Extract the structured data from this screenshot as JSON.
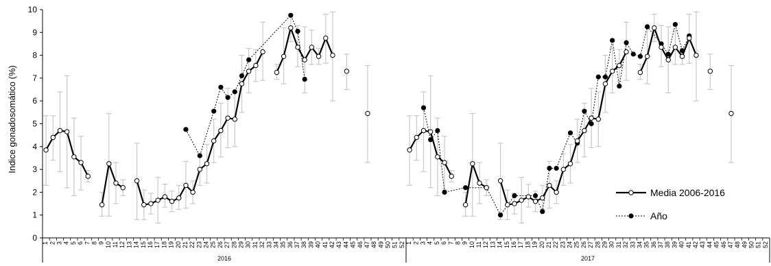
{
  "chart_data": {
    "type": "line",
    "ylabel": "Indice gonadosomático (%)",
    "ylim": [
      0,
      10
    ],
    "yticks": [
      "0",
      "1",
      "2",
      "3",
      "4",
      "5",
      "6",
      "7",
      "8",
      "9",
      "10"
    ],
    "week_labels": [
      "1",
      "2",
      "3",
      "4",
      "5",
      "6",
      "7",
      "8",
      "9",
      "10",
      "11",
      "12",
      "13",
      "14",
      "15",
      "16",
      "17",
      "18",
      "19",
      "20",
      "21",
      "22",
      "23",
      "24",
      "25",
      "26",
      "27",
      "28",
      "29",
      "30",
      "31",
      "32",
      "33",
      "34",
      "35",
      "36",
      "37",
      "38",
      "39",
      "40",
      "41",
      "42",
      "43",
      "44",
      "45",
      "46",
      "47",
      "48",
      "49",
      "50",
      "51",
      "52"
    ],
    "groups": [
      "2016",
      "2017"
    ],
    "legend": {
      "position": "bottom-right",
      "media_label": "Media 2006-2016",
      "year_label": "Año"
    },
    "colors": {
      "mean_line": "#000000",
      "error_bar": "#c8c8c8",
      "year_marker": "#000000"
    },
    "mean_series": {
      "name": "Media 2006-2016",
      "points": [
        {
          "week": 1,
          "mean": 3.85,
          "lo": 2.3,
          "hi": 5.35
        },
        {
          "week": 2,
          "mean": 4.4,
          "lo": 3.4,
          "hi": 5.35
        },
        {
          "week": 3,
          "mean": 4.7,
          "lo": 2.9,
          "hi": 6.4
        },
        {
          "week": 4,
          "mean": 4.65,
          "lo": 2.2,
          "hi": 7.1
        },
        {
          "week": 5,
          "mean": 3.55,
          "lo": 1.85,
          "hi": 5.25
        },
        {
          "week": 6,
          "mean": 3.3,
          "lo": 2.1,
          "hi": 4.45
        },
        {
          "week": 7,
          "mean": 2.7,
          "lo": 2.45,
          "hi": 2.95
        },
        {
          "week": 9,
          "mean": 1.45,
          "lo": 0.95,
          "hi": 2.0
        },
        {
          "week": 10,
          "mean": 3.25,
          "lo": 0.95,
          "hi": 5.45
        },
        {
          "week": 11,
          "mean": 2.4,
          "lo": 1.5,
          "hi": 3.3
        },
        {
          "week": 12,
          "mean": 2.2,
          "lo": 1.85,
          "hi": 2.55
        },
        {
          "week": 14,
          "mean": 2.5,
          "lo": 0.8,
          "hi": 4.15
        },
        {
          "week": 15,
          "mean": 1.45,
          "lo": 0.8,
          "hi": 2.1
        },
        {
          "week": 16,
          "mean": 1.5,
          "lo": 1.05,
          "hi": 1.95
        },
        {
          "week": 17,
          "mean": 1.65,
          "lo": 0.65,
          "hi": 2.65
        },
        {
          "week": 18,
          "mean": 1.8,
          "lo": 1.35,
          "hi": 2.35
        },
        {
          "week": 19,
          "mean": 1.6,
          "lo": 1.15,
          "hi": 2.05
        },
        {
          "week": 20,
          "mean": 1.75,
          "lo": 1.25,
          "hi": 2.3
        },
        {
          "week": 21,
          "mean": 2.3,
          "lo": 1.3,
          "hi": 3.35
        },
        {
          "week": 22,
          "mean": 2.0,
          "lo": 1.5,
          "hi": 2.5
        },
        {
          "week": 23,
          "mean": 3.0,
          "lo": 2.3,
          "hi": 3.7
        },
        {
          "week": 24,
          "mean": 3.25,
          "lo": 2.4,
          "hi": 4.1
        },
        {
          "week": 25,
          "mean": 4.25,
          "lo": 3.3,
          "hi": 5.2
        },
        {
          "week": 26,
          "mean": 4.7,
          "lo": 3.55,
          "hi": 5.9
        },
        {
          "week": 27,
          "mean": 5.25,
          "lo": 3.95,
          "hi": 6.55
        },
        {
          "week": 28,
          "mean": 5.2,
          "lo": 4.0,
          "hi": 6.4
        },
        {
          "week": 29,
          "mean": 6.75,
          "lo": 5.5,
          "hi": 8.0
        },
        {
          "week": 30,
          "mean": 7.3,
          "lo": 6.35,
          "hi": 8.3
        },
        {
          "week": 31,
          "mean": 7.55,
          "lo": 6.85,
          "hi": 8.25
        },
        {
          "week": 32,
          "mean": 8.15,
          "lo": 6.9,
          "hi": 9.45
        },
        {
          "week": 34,
          "mean": 7.25,
          "lo": 6.95,
          "hi": 7.6
        },
        {
          "week": 35,
          "mean": 7.95,
          "lo": 6.75,
          "hi": 9.2
        },
        {
          "week": 36,
          "mean": 9.2,
          "lo": 8.6,
          "hi": 9.8
        },
        {
          "week": 37,
          "mean": 8.35,
          "lo": 7.5,
          "hi": 9.3
        },
        {
          "week": 38,
          "mean": 7.8,
          "lo": 6.35,
          "hi": 9.25
        },
        {
          "week": 39,
          "mean": 8.35,
          "lo": 7.6,
          "hi": 9.1
        },
        {
          "week": 40,
          "mean": 7.95,
          "lo": 7.6,
          "hi": 8.3
        },
        {
          "week": 41,
          "mean": 8.75,
          "lo": 7.65,
          "hi": 9.8
        },
        {
          "week": 42,
          "mean": 8.0,
          "lo": 6.0,
          "hi": 9.9
        },
        {
          "week": 44,
          "mean": 7.3,
          "lo": 6.5,
          "hi": 8.05
        },
        {
          "week": 47,
          "mean": 5.45,
          "lo": 3.3,
          "hi": 7.55
        }
      ]
    },
    "year_series": [
      {
        "name": "2016",
        "points": [
          {
            "week": 21,
            "value": 4.75
          },
          {
            "week": 23,
            "value": 3.6
          },
          {
            "week": 25,
            "value": 5.55
          },
          {
            "week": 26,
            "value": 6.6
          },
          {
            "week": 27,
            "value": 6.15
          },
          {
            "week": 28,
            "value": 6.4
          },
          {
            "week": 29,
            "value": 7.1
          },
          {
            "week": 30,
            "value": 7.8
          },
          {
            "week": 36,
            "value": 9.75
          },
          {
            "week": 37,
            "value": 9.05
          },
          {
            "week": 38,
            "value": 6.95
          }
        ]
      },
      {
        "name": "2017",
        "points": [
          {
            "week": 3,
            "value": 5.7
          },
          {
            "week": 4,
            "value": 4.3
          },
          {
            "week": 5,
            "value": 4.7
          },
          {
            "week": 6,
            "value": 2.0
          },
          {
            "week": 9,
            "value": 2.2
          },
          {
            "week": 12,
            "value": 2.2
          },
          {
            "week": 14,
            "value": 1.0
          },
          {
            "week": 16,
            "value": 1.85
          },
          {
            "week": 19,
            "value": 1.85
          },
          {
            "week": 20,
            "value": 1.15
          },
          {
            "week": 21,
            "value": 3.05
          },
          {
            "week": 22,
            "value": 3.05
          },
          {
            "week": 24,
            "value": 4.6
          },
          {
            "week": 25,
            "value": 4.15
          },
          {
            "week": 26,
            "value": 5.55
          },
          {
            "week": 27,
            "value": 5.0
          },
          {
            "week": 28,
            "value": 7.05
          },
          {
            "week": 29,
            "value": 7.05
          },
          {
            "week": 30,
            "value": 8.65
          },
          {
            "week": 31,
            "value": 6.65
          },
          {
            "week": 32,
            "value": 8.55
          },
          {
            "week": 33,
            "value": 8.05
          },
          {
            "week": 34,
            "value": 7.95
          },
          {
            "week": 35,
            "value": 9.25
          },
          {
            "week": 37,
            "value": 8.5
          },
          {
            "week": 38,
            "value": 8.05
          },
          {
            "week": 39,
            "value": 9.35
          },
          {
            "week": 40,
            "value": 8.2
          },
          {
            "week": 41,
            "value": 8.85
          }
        ]
      }
    ]
  }
}
